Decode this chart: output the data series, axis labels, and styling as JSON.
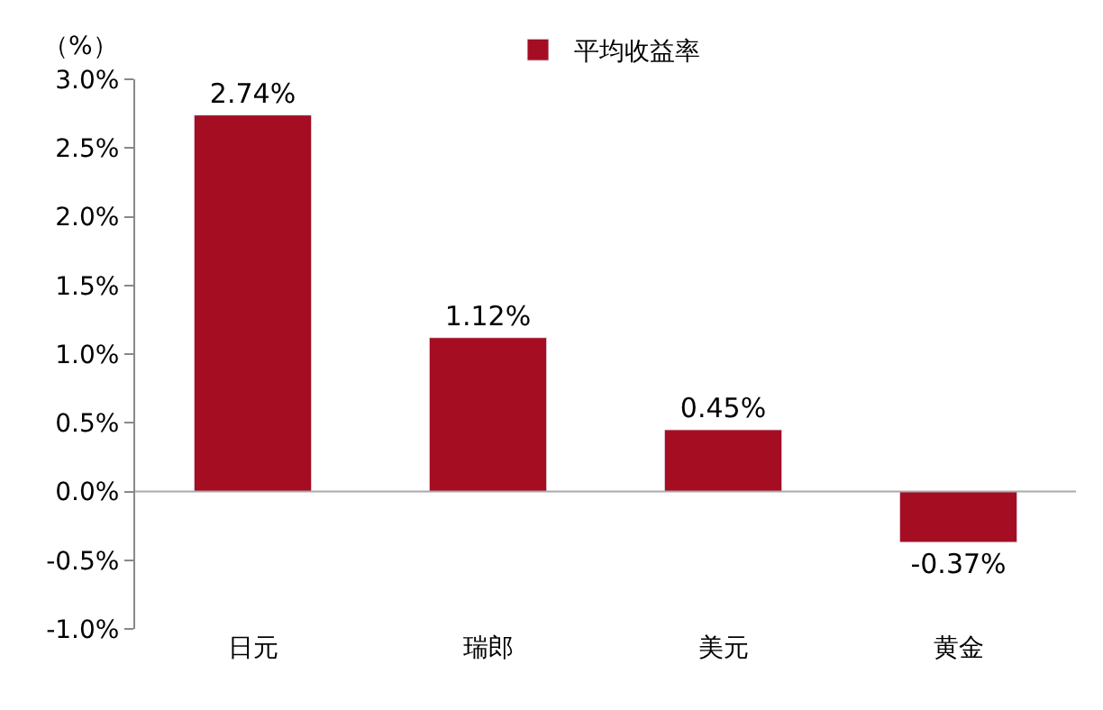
{
  "chart_data": {
    "type": "bar",
    "ylabel": "（%）",
    "categories": [
      "日元",
      "瑞郎",
      "美元",
      "黄金"
    ],
    "series": [
      {
        "name": "平均收益率",
        "color": "#a50d22",
        "values": [
          2.74,
          1.12,
          0.45,
          -0.37
        ],
        "value_labels": [
          "2.74%",
          "1.12%",
          "0.45%",
          "-0.37%"
        ]
      }
    ],
    "ylim": [
      -1.0,
      3.0
    ],
    "yticks": [
      {
        "value": -1.0,
        "label": "-1.0%"
      },
      {
        "value": -0.5,
        "label": "-0.5%"
      },
      {
        "value": 0,
        "label": "0.0%"
      },
      {
        "value": 0.5,
        "label": "0.5%"
      },
      {
        "value": 1.0,
        "label": "1.0%"
      },
      {
        "value": 1.5,
        "label": "1.5%"
      },
      {
        "value": 2.0,
        "label": "2.0%"
      },
      {
        "value": 2.5,
        "label": "2.5%"
      },
      {
        "value": 3.0,
        "label": "3.0%"
      }
    ],
    "ref_lines": [
      {
        "axis": "y",
        "value": 0,
        "color": "#aaaaaa"
      }
    ],
    "grid": false,
    "legend": "top"
  }
}
